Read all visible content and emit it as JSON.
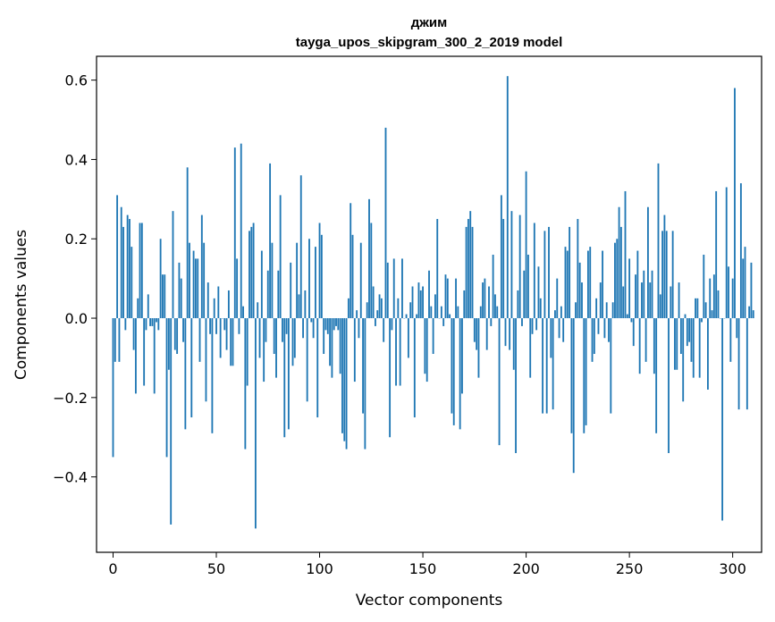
{
  "chart_data": {
    "type": "bar",
    "title_line1": "джим",
    "title_line2": "tayga_upos_skipgram_300_2_2019 model",
    "xlabel": "Vector components",
    "ylabel": "Components values",
    "xlim": [
      -8,
      314
    ],
    "ylim": [
      -0.59,
      0.66
    ],
    "xticks": [
      0,
      50,
      100,
      150,
      200,
      250,
      300
    ],
    "yticks": [
      -0.4,
      -0.2,
      0.0,
      0.2,
      0.4,
      0.6
    ],
    "ytick_labels": [
      "−0.4",
      "−0.2",
      "0.0",
      "0.2",
      "0.4",
      "0.6"
    ],
    "grid": false,
    "color": "#1f77b4",
    "values": [
      -0.35,
      -0.11,
      0.31,
      -0.11,
      0.28,
      0.23,
      -0.03,
      0.26,
      0.25,
      0.18,
      -0.08,
      -0.19,
      0.05,
      0.24,
      0.24,
      -0.17,
      -0.03,
      0.06,
      -0.02,
      -0.02,
      -0.19,
      -0.01,
      -0.03,
      0.2,
      0.11,
      0.11,
      -0.35,
      -0.13,
      -0.52,
      0.27,
      -0.08,
      -0.09,
      0.14,
      0.1,
      -0.06,
      -0.28,
      0.38,
      0.19,
      -0.25,
      0.17,
      0.15,
      0.15,
      -0.11,
      0.26,
      0.19,
      -0.21,
      0.09,
      -0.04,
      -0.29,
      0.05,
      -0.04,
      0.08,
      -0.1,
      0.0,
      -0.03,
      -0.08,
      0.07,
      -0.12,
      -0.12,
      0.43,
      0.15,
      -0.04,
      0.44,
      0.03,
      -0.33,
      -0.17,
      0.22,
      0.23,
      0.24,
      -0.53,
      0.04,
      -0.1,
      0.17,
      -0.16,
      -0.06,
      0.12,
      0.39,
      0.19,
      -0.09,
      -0.15,
      0.12,
      0.31,
      -0.06,
      -0.3,
      -0.04,
      -0.28,
      0.14,
      -0.12,
      -0.1,
      0.19,
      0.06,
      0.36,
      -0.05,
      0.07,
      -0.21,
      0.2,
      -0.01,
      -0.05,
      0.18,
      -0.25,
      0.24,
      0.21,
      -0.09,
      -0.03,
      -0.04,
      -0.12,
      -0.15,
      -0.03,
      -0.02,
      -0.03,
      -0.14,
      -0.29,
      -0.31,
      -0.33,
      0.05,
      0.29,
      0.21,
      -0.16,
      0.02,
      -0.05,
      0.19,
      -0.24,
      -0.33,
      0.04,
      0.3,
      0.24,
      0.08,
      -0.02,
      0.02,
      0.06,
      0.05,
      -0.06,
      0.48,
      0.14,
      -0.3,
      -0.03,
      0.15,
      -0.17,
      0.05,
      -0.17,
      0.15,
      0.0,
      0.01,
      -0.1,
      0.04,
      0.08,
      -0.25,
      0.01,
      0.09,
      0.07,
      0.08,
      -0.14,
      -0.16,
      0.12,
      0.03,
      -0.09,
      0.06,
      0.25,
      0.0,
      0.03,
      -0.02,
      0.11,
      0.1,
      0.01,
      -0.24,
      -0.27,
      0.1,
      0.03,
      -0.28,
      -0.19,
      0.07,
      0.23,
      0.25,
      0.27,
      0.23,
      -0.06,
      -0.08,
      -0.15,
      0.03,
      0.09,
      0.1,
      -0.08,
      0.08,
      -0.02,
      0.16,
      0.06,
      0.03,
      -0.32,
      0.31,
      0.25,
      -0.07,
      0.61,
      -0.08,
      0.27,
      -0.13,
      -0.34,
      0.07,
      0.26,
      -0.02,
      0.12,
      0.37,
      0.16,
      -0.15,
      -0.04,
      0.24,
      -0.03,
      0.13,
      0.05,
      -0.24,
      0.22,
      -0.24,
      0.23,
      -0.1,
      -0.23,
      0.02,
      0.1,
      -0.05,
      0.03,
      -0.06,
      0.18,
      0.17,
      0.23,
      -0.29,
      -0.39,
      0.04,
      0.25,
      0.14,
      0.09,
      -0.29,
      -0.27,
      0.17,
      0.18,
      -0.11,
      -0.09,
      0.05,
      -0.04,
      0.09,
      0.17,
      -0.05,
      0.04,
      -0.06,
      -0.24,
      0.04,
      0.19,
      0.2,
      0.28,
      0.23,
      0.08,
      0.32,
      0.01,
      0.15,
      -0.01,
      -0.07,
      0.11,
      0.17,
      -0.14,
      0.09,
      0.12,
      -0.11,
      0.28,
      0.09,
      0.12,
      -0.14,
      -0.29,
      0.39,
      0.06,
      0.22,
      0.26,
      0.22,
      -0.34,
      0.08,
      0.22,
      -0.13,
      -0.13,
      0.09,
      -0.09,
      -0.21,
      0.01,
      -0.07,
      -0.06,
      -0.11,
      -0.15,
      0.05,
      0.05,
      -0.15,
      -0.01,
      0.16,
      0.04,
      -0.18,
      0.1,
      0.02,
      0.11,
      0.32,
      0.07,
      0.0,
      -0.51,
      0.0,
      0.33,
      0.13,
      -0.11,
      0.1,
      0.58,
      -0.05,
      -0.23,
      0.34,
      0.15,
      0.18,
      -0.23,
      0.03,
      0.14,
      0.02
    ]
  }
}
